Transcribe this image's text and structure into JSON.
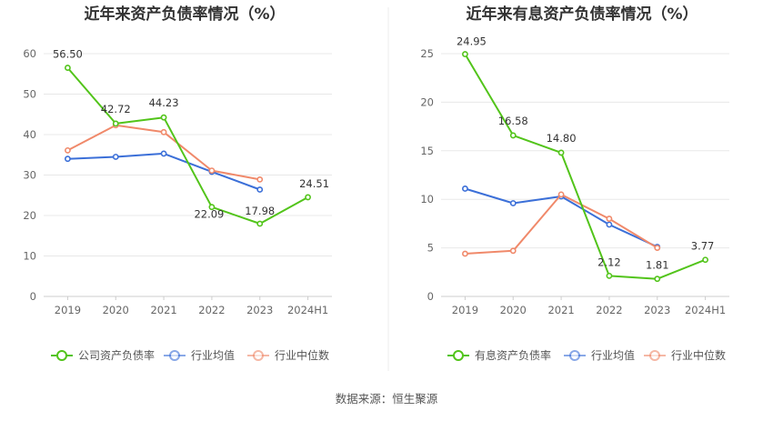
{
  "source_text": "数据来源：恒生聚源",
  "chart_data": [
    {
      "type": "line",
      "title": "近年来资产负债率情况（%）",
      "categories": [
        "2019",
        "2020",
        "2021",
        "2022",
        "2023",
        "2024H1"
      ],
      "ylim": [
        0,
        60
      ],
      "yticks": [
        0,
        10,
        20,
        30,
        40,
        50,
        60
      ],
      "grid": true,
      "legend_position": "bottom",
      "series": [
        {
          "name": "公司资产负债率",
          "color": "#52c41a",
          "values": [
            56.5,
            42.72,
            44.23,
            22.09,
            17.98,
            24.51
          ],
          "labels": [
            "56.50",
            "42.72",
            "44.23",
            "22.09",
            "17.98",
            "24.51"
          ]
        },
        {
          "name": "行业均值",
          "color": "#3b6fd8",
          "values": [
            34.0,
            34.5,
            35.3,
            30.8,
            26.4,
            null
          ]
        },
        {
          "name": "行业中位数",
          "color": "#f0896a",
          "values": [
            36.1,
            42.3,
            40.6,
            31.1,
            28.9,
            null
          ]
        }
      ]
    },
    {
      "type": "line",
      "title": "近年来有息资产负债率情况（%）",
      "categories": [
        "2019",
        "2020",
        "2021",
        "2022",
        "2023",
        "2024H1"
      ],
      "ylim": [
        0,
        25
      ],
      "yticks": [
        0,
        5,
        10,
        15,
        20,
        25
      ],
      "grid": true,
      "legend_position": "bottom",
      "series": [
        {
          "name": "有息资产负债率",
          "color": "#52c41a",
          "values": [
            24.95,
            16.58,
            14.8,
            2.12,
            1.81,
            3.77
          ],
          "labels": [
            "24.95",
            "16.58",
            "14.80",
            "2.12",
            "1.81",
            "3.77"
          ]
        },
        {
          "name": "行业均值",
          "color": "#3b6fd8",
          "values": [
            11.1,
            9.6,
            10.3,
            7.4,
            5.1,
            null
          ]
        },
        {
          "name": "行业中位数",
          "color": "#f0896a",
          "values": [
            4.4,
            4.7,
            10.5,
            8.0,
            5.0,
            null
          ]
        }
      ]
    }
  ]
}
